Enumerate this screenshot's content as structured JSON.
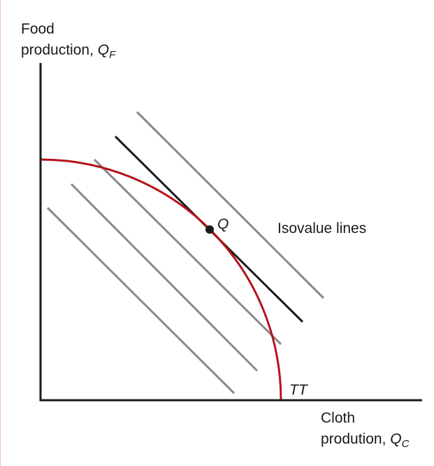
{
  "colors": {
    "axis": "#1a1a1a",
    "curve": "#b5121b",
    "isovalue_line": "#8a8a8a",
    "tangent_line": "#1a1a1a",
    "point": "#1a1a1a",
    "page_rule": "#f0c2c4"
  },
  "labels": {
    "y_axis_line1": "Food",
    "y_axis_line2_text": "production, ",
    "y_axis_var": "Q",
    "y_axis_sub": "F",
    "x_axis_line1": "Cloth",
    "x_axis_line2_text": "prodution, ",
    "x_axis_var": "Q",
    "x_axis_sub": "C",
    "curve_label": "TT",
    "point_label": "Q",
    "isovalue_label": "Isovalue lines"
  }
}
